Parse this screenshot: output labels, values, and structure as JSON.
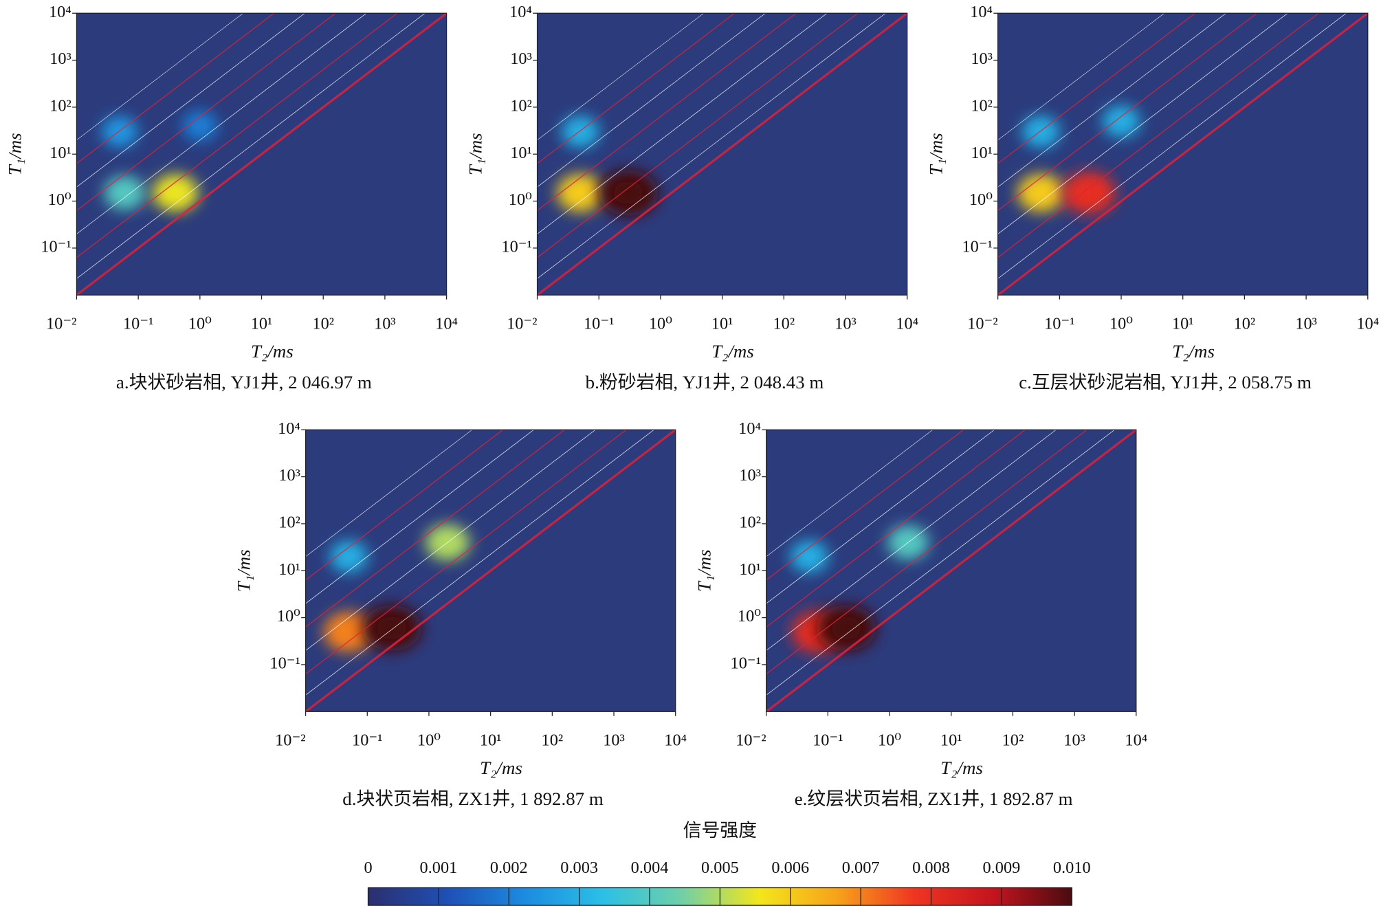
{
  "chart_data": [
    {
      "type": "heatmap",
      "caption": "a.块状砂岩相, YJ1井, 2 046.97 m",
      "xlabel": "T₂/ms",
      "ylabel": "T₁/ms",
      "log_x": true,
      "log_y": true,
      "background": "#2b3b7c",
      "xlim": [
        0.01,
        10000
      ],
      "ylim": [
        0.01,
        10000
      ],
      "xticks": [
        {
          "value": 0.01,
          "label": "10⁻²"
        },
        {
          "value": 0.1,
          "label": "10⁻¹"
        },
        {
          "value": 1,
          "label": "10⁰"
        },
        {
          "value": 10,
          "label": "10¹"
        },
        {
          "value": 100,
          "label": "10²"
        },
        {
          "value": 1000,
          "label": "10³"
        },
        {
          "value": 10000,
          "label": "10⁴"
        }
      ],
      "yticks": [
        {
          "value": 0.1,
          "label": "10⁻¹"
        },
        {
          "value": 1,
          "label": "10⁰"
        },
        {
          "value": 10,
          "label": "10¹"
        },
        {
          "value": 100,
          "label": "10²"
        },
        {
          "value": 1000,
          "label": "10³"
        },
        {
          "value": 10000,
          "label": "10⁴"
        }
      ],
      "peaks": {
        "t2": [
          0.06,
          0.4,
          0.05,
          1
        ],
        "t1": [
          1.5,
          1.5,
          30,
          40
        ],
        "intensity": [
          0.004,
          0.0055,
          0.0025,
          0.002
        ]
      }
    },
    {
      "type": "heatmap",
      "caption": "b.粉砂岩相, YJ1井, 2 048.43 m",
      "xlabel": "T₂/ms",
      "ylabel": "T₁/ms",
      "log_x": true,
      "log_y": true,
      "background": "#2b3b7c",
      "xlim": [
        0.01,
        10000
      ],
      "ylim": [
        0.01,
        10000
      ],
      "xticks": [
        {
          "value": 0.01,
          "label": "10⁻²"
        },
        {
          "value": 0.1,
          "label": "10⁻¹"
        },
        {
          "value": 1,
          "label": "10⁰"
        },
        {
          "value": 10,
          "label": "10¹"
        },
        {
          "value": 100,
          "label": "10²"
        },
        {
          "value": 1000,
          "label": "10³"
        },
        {
          "value": 10000,
          "label": "10⁴"
        }
      ],
      "yticks": [
        {
          "value": 0.1,
          "label": "10⁻¹"
        },
        {
          "value": 1,
          "label": "10⁰"
        },
        {
          "value": 10,
          "label": "10¹"
        },
        {
          "value": 100,
          "label": "10²"
        },
        {
          "value": 1000,
          "label": "10³"
        },
        {
          "value": 10000,
          "label": "10⁴"
        }
      ],
      "peaks": {
        "t2": [
          0.05,
          0.3,
          0.05
        ],
        "t1": [
          1.5,
          1.5,
          30
        ],
        "intensity": [
          0.006,
          0.01,
          0.003
        ]
      }
    },
    {
      "type": "heatmap",
      "caption": "c.互层状砂泥岩相, YJ1井, 2 058.75 m",
      "xlabel": "T₂/ms",
      "ylabel": "T₁/ms",
      "log_x": true,
      "log_y": true,
      "background": "#2b3b7c",
      "xlim": [
        0.01,
        10000
      ],
      "ylim": [
        0.01,
        10000
      ],
      "xticks": [
        {
          "value": 0.01,
          "label": "10⁻²"
        },
        {
          "value": 0.1,
          "label": "10⁻¹"
        },
        {
          "value": 1,
          "label": "10⁰"
        },
        {
          "value": 10,
          "label": "10¹"
        },
        {
          "value": 100,
          "label": "10²"
        },
        {
          "value": 1000,
          "label": "10³"
        },
        {
          "value": 10000,
          "label": "10⁴"
        }
      ],
      "yticks": [
        {
          "value": 0.1,
          "label": "10⁻¹"
        },
        {
          "value": 1,
          "label": "10⁰"
        },
        {
          "value": 10,
          "label": "10¹"
        },
        {
          "value": 100,
          "label": "10²"
        },
        {
          "value": 1000,
          "label": "10³"
        },
        {
          "value": 10000,
          "label": "10⁴"
        }
      ],
      "peaks": {
        "t2": [
          0.05,
          0.3,
          0.05,
          1
        ],
        "t1": [
          1.5,
          1.5,
          30,
          50
        ],
        "intensity": [
          0.006,
          0.008,
          0.003,
          0.003
        ]
      }
    },
    {
      "type": "heatmap",
      "caption": "d.块状页岩相, ZX1井, 1 892.87 m",
      "xlabel": "T₂/ms",
      "ylabel": "T₁/ms",
      "log_x": true,
      "log_y": true,
      "background": "#2b3b7c",
      "xlim": [
        0.01,
        10000
      ],
      "ylim": [
        0.01,
        10000
      ],
      "xticks": [
        {
          "value": 0.01,
          "label": "10⁻²"
        },
        {
          "value": 0.1,
          "label": "10⁻¹"
        },
        {
          "value": 1,
          "label": "10⁰"
        },
        {
          "value": 10,
          "label": "10¹"
        },
        {
          "value": 100,
          "label": "10²"
        },
        {
          "value": 1000,
          "label": "10³"
        },
        {
          "value": 10000,
          "label": "10⁴"
        }
      ],
      "yticks": [
        {
          "value": 0.1,
          "label": "10⁻¹"
        },
        {
          "value": 1,
          "label": "10⁰"
        },
        {
          "value": 10,
          "label": "10¹"
        },
        {
          "value": 100,
          "label": "10²"
        },
        {
          "value": 1000,
          "label": "10³"
        },
        {
          "value": 10000,
          "label": "10⁴"
        }
      ],
      "peaks": {
        "t2": [
          0.05,
          0.25,
          2,
          0.05
        ],
        "t1": [
          0.5,
          0.6,
          40,
          20
        ],
        "intensity": [
          0.007,
          0.01,
          0.005,
          0.003
        ]
      }
    },
    {
      "type": "heatmap",
      "caption": "e.纹层状页岩相, ZX1井, 1 892.87 m",
      "xlabel": "T₂/ms",
      "ylabel": "T₁/ms",
      "log_x": true,
      "log_y": true,
      "background": "#2b3b7c",
      "xlim": [
        0.01,
        10000
      ],
      "ylim": [
        0.01,
        10000
      ],
      "xticks": [
        {
          "value": 0.01,
          "label": "10⁻²"
        },
        {
          "value": 0.1,
          "label": "10⁻¹"
        },
        {
          "value": 1,
          "label": "10⁰"
        },
        {
          "value": 10,
          "label": "10¹"
        },
        {
          "value": 100,
          "label": "10²"
        },
        {
          "value": 1000,
          "label": "10³"
        },
        {
          "value": 10000,
          "label": "10⁴"
        }
      ],
      "yticks": [
        {
          "value": 0.1,
          "label": "10⁻¹"
        },
        {
          "value": 1,
          "label": "10⁰"
        },
        {
          "value": 10,
          "label": "10¹"
        },
        {
          "value": 100,
          "label": "10²"
        },
        {
          "value": 1000,
          "label": "10³"
        },
        {
          "value": 10000,
          "label": "10⁴"
        }
      ],
      "peaks": {
        "t2": [
          0.07,
          0.2,
          2,
          0.05
        ],
        "t1": [
          0.5,
          0.6,
          40,
          20
        ],
        "intensity": [
          0.008,
          0.01,
          0.004,
          0.003
        ]
      }
    },
    {
      "type": "colorbar",
      "title": "信号强度",
      "clim": [
        0,
        0.01
      ],
      "ticks": [
        0,
        0.001,
        0.002,
        0.003,
        0.004,
        0.005,
        0.006,
        0.007,
        0.008,
        0.009,
        {
          "value": 0.01,
          "label": "0.010"
        }
      ],
      "colormap": [
        "#2b2f6e",
        "#1f4fb5",
        "#1c8be0",
        "#2bc0e6",
        "#6fcfa8",
        "#f3e61c",
        "#f7a21a",
        "#ef3422",
        "#c3141e",
        "#4a0c10"
      ]
    }
  ]
}
